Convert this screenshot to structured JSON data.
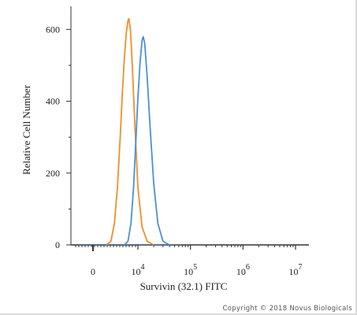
{
  "chart_data": {
    "type": "line",
    "xlabel": "Survivin (32.1) FITC",
    "ylabel": "Relative Cell Number",
    "x_scale": "biexponential",
    "ylim": [
      0,
      660
    ],
    "y_ticks": [
      0,
      200,
      400,
      600
    ],
    "x_ticks": [
      {
        "value": 0,
        "base": "0",
        "exp": ""
      },
      {
        "value": 10000,
        "base": "10",
        "exp": "4"
      },
      {
        "value": 100000,
        "base": "10",
        "exp": "5"
      },
      {
        "value": 1000000,
        "base": "10",
        "exp": "6"
      },
      {
        "value": 10000000,
        "base": "10",
        "exp": "7"
      }
    ],
    "series": [
      {
        "color": "#f28e2b",
        "peak_x": 6300,
        "peak_y": 630,
        "x": [
          2000,
          2500,
          3000,
          3500,
          4000,
          4500,
          5000,
          5500,
          6000,
          6300,
          6800,
          7500,
          8500,
          10000,
          12000,
          15000,
          20000
        ],
        "y": [
          0,
          10,
          60,
          160,
          290,
          420,
          520,
          590,
          625,
          630,
          600,
          500,
          340,
          160,
          50,
          10,
          0
        ]
      },
      {
        "color": "#4a90d9",
        "peak_x": 12600,
        "peak_y": 580,
        "x": [
          5000,
          6000,
          7000,
          8000,
          9000,
          10000,
          11000,
          12000,
          12600,
          13500,
          15000,
          17000,
          20000,
          24000,
          30000,
          40000
        ],
        "y": [
          0,
          10,
          60,
          160,
          290,
          410,
          510,
          570,
          580,
          560,
          470,
          330,
          170,
          60,
          10,
          0
        ]
      }
    ]
  },
  "copyright": "Copyright © 2018 Novus Biologicals"
}
